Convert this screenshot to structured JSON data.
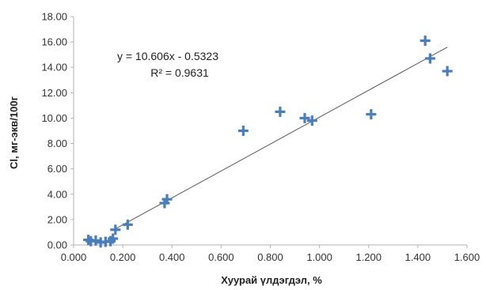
{
  "chart_data": {
    "type": "scatter",
    "xlabel": "Хуурай үлдэгдэл, %",
    "ylabel": "Cl, мг-экв/100г",
    "xlim": [
      0,
      1.6
    ],
    "ylim": [
      0,
      18
    ],
    "x_ticks": [
      "0.000",
      "0.200",
      "0.400",
      "0.600",
      "0.800",
      "1.000",
      "1.200",
      "1.400",
      "1.600"
    ],
    "y_ticks": [
      "0.00",
      "2.00",
      "4.00",
      "6.00",
      "8.00",
      "10.00",
      "12.00",
      "14.00",
      "16.00",
      "18.00"
    ],
    "grid": false,
    "marker": "plus",
    "marker_color": "#4a7ebb",
    "trendline_color": "#595959",
    "points": [
      {
        "x": 0.06,
        "y": 0.4
      },
      {
        "x": 0.07,
        "y": 0.3
      },
      {
        "x": 0.09,
        "y": 0.35
      },
      {
        "x": 0.11,
        "y": 0.2
      },
      {
        "x": 0.13,
        "y": 0.25
      },
      {
        "x": 0.15,
        "y": 0.3
      },
      {
        "x": 0.16,
        "y": 0.5
      },
      {
        "x": 0.17,
        "y": 1.2
      },
      {
        "x": 0.22,
        "y": 1.6
      },
      {
        "x": 0.37,
        "y": 3.3
      },
      {
        "x": 0.38,
        "y": 3.6
      },
      {
        "x": 0.69,
        "y": 9.0
      },
      {
        "x": 0.84,
        "y": 10.5
      },
      {
        "x": 0.94,
        "y": 10.0
      },
      {
        "x": 0.97,
        "y": 9.8
      },
      {
        "x": 1.21,
        "y": 10.3
      },
      {
        "x": 1.43,
        "y": 16.1
      },
      {
        "x": 1.45,
        "y": 14.7
      },
      {
        "x": 1.52,
        "y": 13.7
      }
    ],
    "trendline": {
      "slope": 10.606,
      "intercept": -0.5323,
      "x_range": [
        0.16,
        1.52
      ],
      "equation": "y = 10.606x - 0.5323",
      "r2": "R² = 0.9631"
    }
  }
}
